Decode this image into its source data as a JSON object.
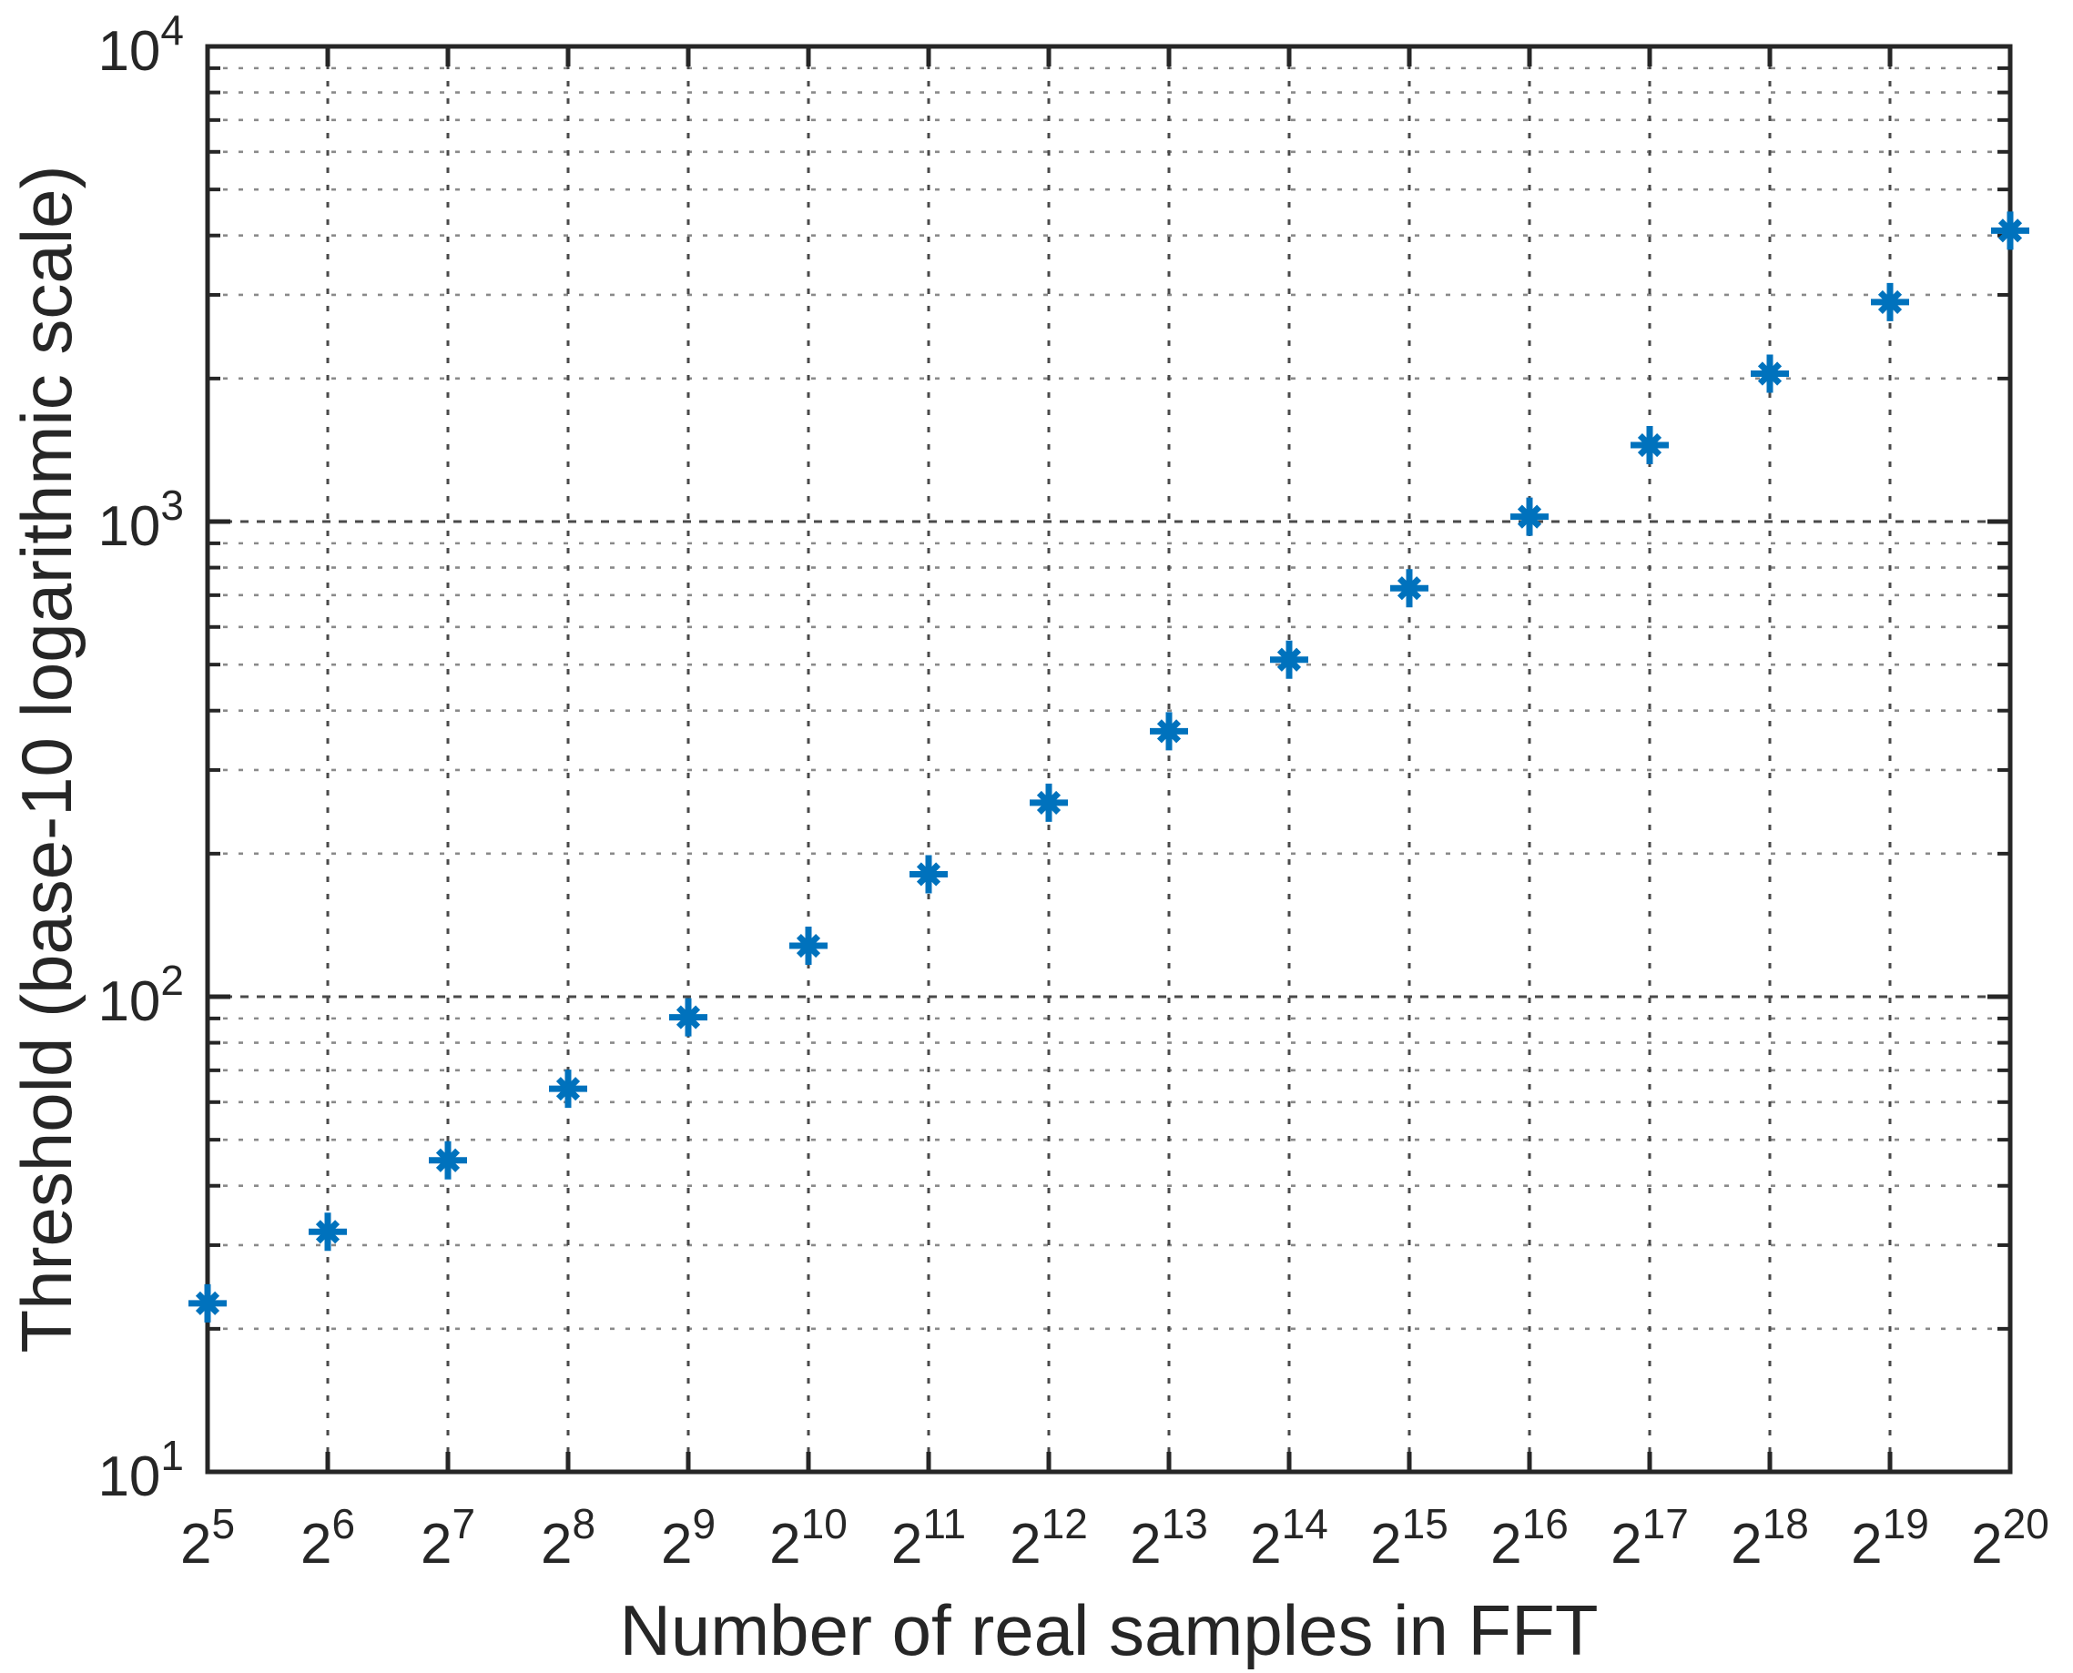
{
  "figure": {
    "background": "#ffffff",
    "text_color": "#262626",
    "axis_color": "#262626"
  },
  "chart_data": {
    "type": "scatter",
    "title": "",
    "xlabel": "Number of real samples in FFT",
    "ylabel": "Threshold (base-10 logarithmic scale)",
    "x_scale": "log2",
    "y_scale": "log10",
    "x_tick_base": "2",
    "x_tick_exponents": [
      5,
      6,
      7,
      8,
      9,
      10,
      11,
      12,
      13,
      14,
      15,
      16,
      17,
      18,
      19,
      20
    ],
    "y_tick_base": "10",
    "y_tick_exponents": [
      1,
      2,
      3,
      4
    ],
    "xlim": [
      32,
      1048576
    ],
    "ylim": [
      10,
      10000
    ],
    "grid": {
      "major": true,
      "minor": true,
      "style": "dotted"
    },
    "legend": null,
    "marker": {
      "shape": "asterisk",
      "color": "#0072BD"
    },
    "points": [
      {
        "x": 32,
        "y": 22.63
      },
      {
        "x": 64,
        "y": 32
      },
      {
        "x": 128,
        "y": 45.25
      },
      {
        "x": 256,
        "y": 64
      },
      {
        "x": 512,
        "y": 90.51
      },
      {
        "x": 1024,
        "y": 128
      },
      {
        "x": 2048,
        "y": 181.02
      },
      {
        "x": 4096,
        "y": 256
      },
      {
        "x": 8192,
        "y": 362.04
      },
      {
        "x": 16384,
        "y": 512
      },
      {
        "x": 32768,
        "y": 724.08
      },
      {
        "x": 65536,
        "y": 1024
      },
      {
        "x": 131072,
        "y": 1448.15
      },
      {
        "x": 262144,
        "y": 2048
      },
      {
        "x": 524288,
        "y": 2896.31
      },
      {
        "x": 1048576,
        "y": 4096
      }
    ]
  }
}
